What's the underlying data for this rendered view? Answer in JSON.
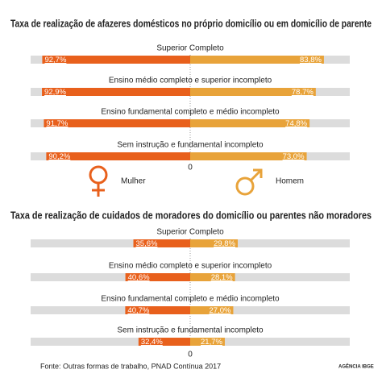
{
  "chart_data": [
    {
      "type": "bar",
      "title": "Taxa de realização de afazeres domésticos no próprio domicílio ou em domicílio de parente",
      "categories": [
        "Superior Completo",
        "Ensino médio completo e superior incompleto",
        "Ensino fundamental completo e médio incompleto",
        "Sem instrução e fundamental incompleto"
      ],
      "series": [
        {
          "name": "Mulher",
          "color": "#e8601c",
          "values": [
            92.7,
            92.9,
            91.7,
            90.2
          ],
          "value_labels": [
            "92,7%",
            "92,9%",
            "91,7%",
            "90,2%"
          ]
        },
        {
          "name": "Homem",
          "color": "#e8a33a",
          "values": [
            83.8,
            78.7,
            74.8,
            73.0
          ],
          "value_labels": [
            "83,8%",
            "78,7%",
            "74,8%",
            "73,0%"
          ]
        }
      ],
      "xlim": [
        0,
        100
      ],
      "xticks": [
        0
      ]
    },
    {
      "type": "bar",
      "title": "Taxa de realização de cuidados de moradores do domicílio ou parentes não moradores",
      "categories": [
        "Superior Completo",
        "Ensino médio completo e superior incompleto",
        "Ensino fundamental completo e médio incompleto",
        "Sem instrução e fundamental incompleto"
      ],
      "series": [
        {
          "color": "#e8601c",
          "values": [
            35.6,
            40.6,
            40.7,
            32.4
          ],
          "value_labels": [
            "35,6%",
            "40,6%",
            "40,7%",
            "32,4%"
          ]
        },
        {
          "color": "#e8a33a",
          "values": [
            29.8,
            28.1,
            27.0,
            21.7
          ],
          "value_labels": [
            "29,8%",
            "28,1%",
            "27,0%",
            "21,7%"
          ]
        }
      ],
      "xlim": [
        0,
        100
      ],
      "xticks": [
        0
      ]
    }
  ],
  "source": "Fonte: Outras formas de trabalho, PNAD Contínua 2017",
  "logo": "AGÊNCIA IBGE"
}
